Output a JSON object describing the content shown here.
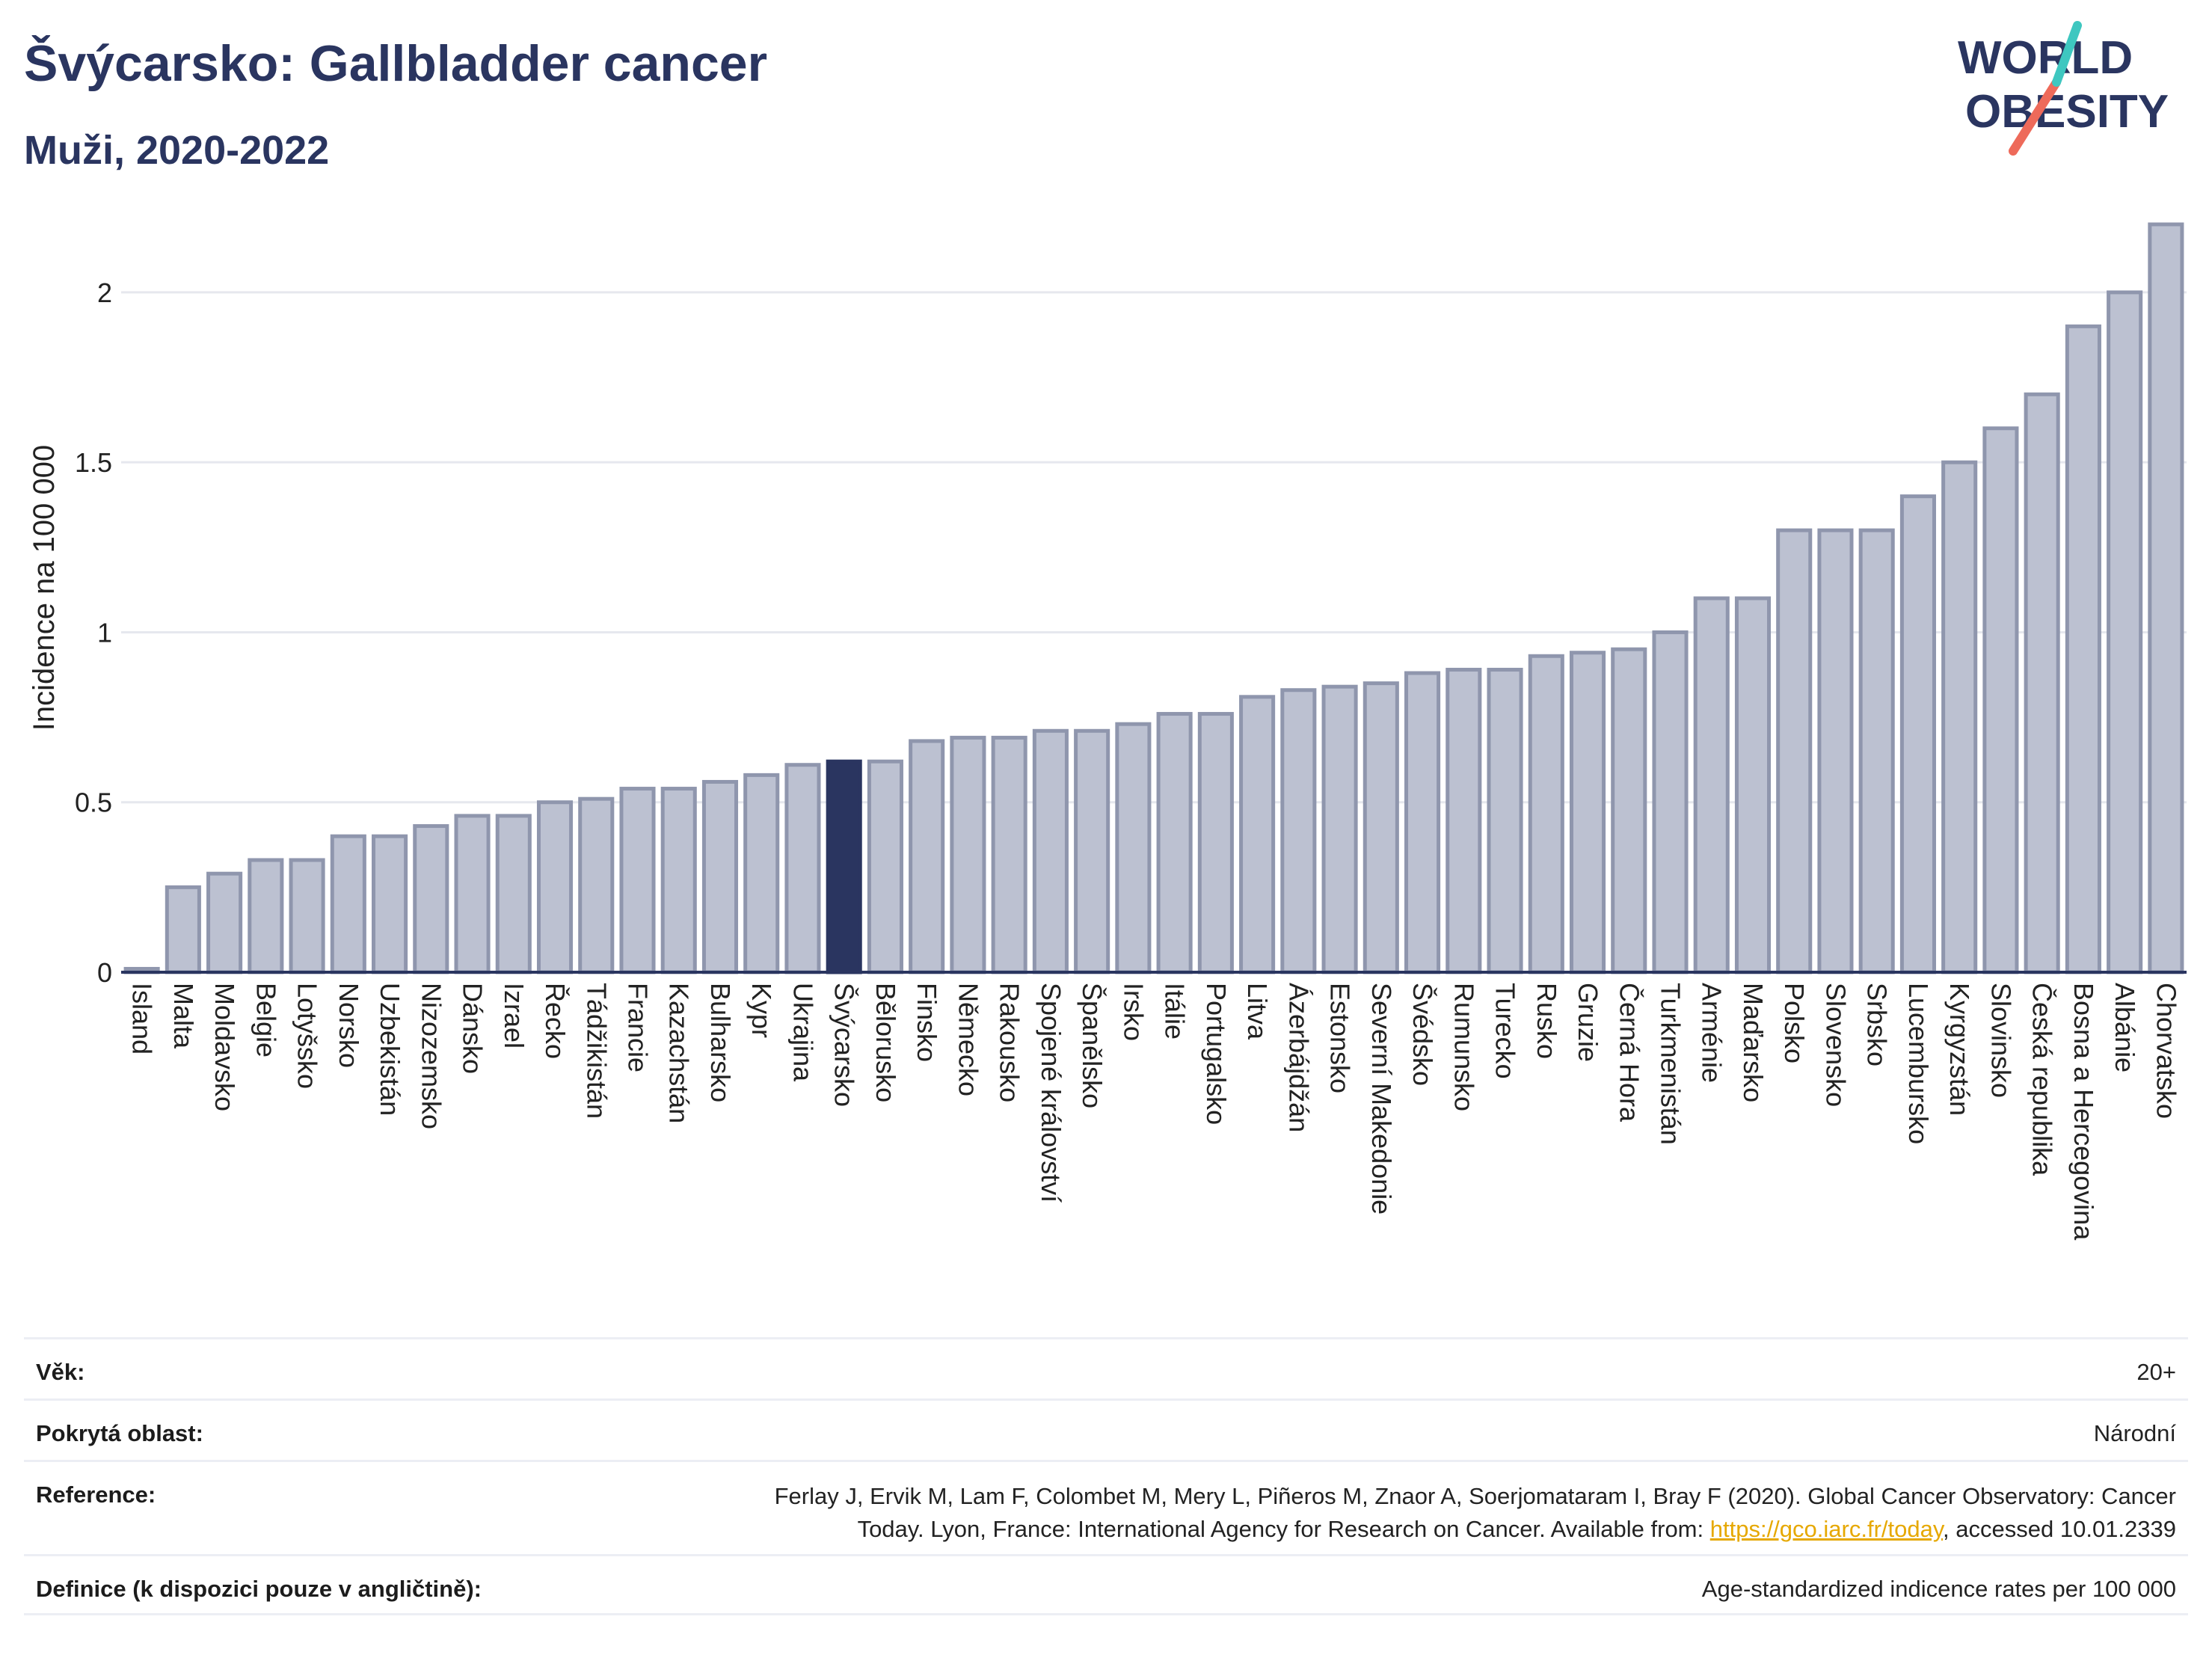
{
  "header": {
    "title": "Švýcarsko: Gallbladder cancer",
    "subtitle": "Muži, 2020-2022"
  },
  "logo": {
    "line1": "WORLD",
    "line2": "OBESITY",
    "colors": {
      "text": "#2a3560",
      "slash_teal": "#3ec7c0",
      "slash_coral": "#ee6a5a"
    }
  },
  "chart_data": {
    "type": "bar",
    "title": "Švýcarsko: Gallbladder cancer",
    "subtitle": "Muži, 2020-2022",
    "xlabel": "",
    "ylabel": "Incidence na 100 000",
    "ylim": [
      0,
      2.2
    ],
    "yticks": [
      0,
      0.5,
      1,
      1.5,
      2
    ],
    "ytick_labels": [
      "0",
      "0.5",
      "1",
      "1.5",
      "2"
    ],
    "grid": true,
    "highlight": "Švýcarsko",
    "colors": {
      "bar": "#bcc1d1",
      "bar_edge": "#8f96ad",
      "highlight": "#2a3560",
      "grid": "#e6e8ee"
    },
    "categories": [
      "Island",
      "Malta",
      "Moldavsko",
      "Belgie",
      "Lotyšsko",
      "Norsko",
      "Uzbekistán",
      "Nizozemsko",
      "Dánsko",
      "Izrael",
      "Řecko",
      "Tádžikistán",
      "Francie",
      "Kazachstán",
      "Bulharsko",
      "Kypr",
      "Ukrajina",
      "Švýcarsko",
      "Bělorusko",
      "Finsko",
      "Německo",
      "Rakousko",
      "Spojené království",
      "Španělsko",
      "Irsko",
      "Itálie",
      "Portugalsko",
      "Litva",
      "Ázerbájdžán",
      "Estonsko",
      "Severní Makedonie",
      "Švédsko",
      "Rumunsko",
      "Turecko",
      "Rusko",
      "Gruzie",
      "Černá Hora",
      "Turkmenistán",
      "Arménie",
      "Maďarsko",
      "Polsko",
      "Slovensko",
      "Srbsko",
      "Lucembursko",
      "Kyrgyzstán",
      "Slovinsko",
      "Česká republika",
      "Bosna a Hercegovina",
      "Albánie",
      "Chorvatsko"
    ],
    "values": [
      0.01,
      0.25,
      0.29,
      0.33,
      0.33,
      0.4,
      0.4,
      0.43,
      0.46,
      0.46,
      0.5,
      0.51,
      0.54,
      0.54,
      0.56,
      0.58,
      0.61,
      0.62,
      0.62,
      0.68,
      0.69,
      0.69,
      0.71,
      0.71,
      0.73,
      0.76,
      0.76,
      0.81,
      0.83,
      0.84,
      0.85,
      0.88,
      0.89,
      0.89,
      0.93,
      0.94,
      0.95,
      1.0,
      1.1,
      1.1,
      1.3,
      1.3,
      1.3,
      1.4,
      1.5,
      1.6,
      1.7,
      1.9,
      2.0,
      2.2
    ]
  },
  "meta": [
    {
      "label": "Věk:",
      "value_lines": [
        "20+"
      ]
    },
    {
      "label": "Pokrytá oblast:",
      "value_lines": [
        "Národní"
      ]
    },
    {
      "label": "Reference:",
      "line1": "Ferlay J, Ervik M, Lam F, Colombet M, Mery L, Piñeros M, Znaor A, Soerjomataram I, Bray F (2020). Global Cancer Observatory: Cancer",
      "line2_pre": "Today. Lyon, France: International Agency for Research on Cancer. Available from: ",
      "link": "https://gco.iarc.fr/today",
      "line2_post": ", accessed 10.01.2339"
    },
    {
      "label": "Definice (k dispozici pouze v angličtině):",
      "value_lines": [
        "Age-standardized indicence rates per 100 000"
      ]
    }
  ]
}
